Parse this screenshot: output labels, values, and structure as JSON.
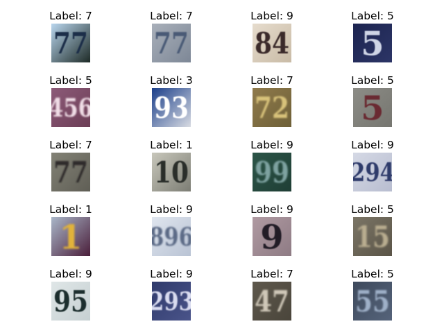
{
  "grid": {
    "rows": 5,
    "cols": 4,
    "label_prefix": "Label: "
  },
  "samples": [
    {
      "label": "7",
      "icon": "digit-photo",
      "glyph": "77",
      "fg": "#1f2d48",
      "bg": "#b9d6ee",
      "bg2": "#1d2a26",
      "blur": 0.5
    },
    {
      "label": "7",
      "icon": "digit-photo",
      "glyph": "77",
      "fg": "#4a5a76",
      "bg": "#a9b0ba",
      "bg2": "#7d8796",
      "blur": 0.9
    },
    {
      "label": "9",
      "icon": "digit-photo",
      "glyph": "84",
      "fg": "#3a2a2a",
      "bg": "#e6dccd",
      "bg2": "#c9bba6",
      "blur": 0.5
    },
    {
      "label": "5",
      "icon": "digit-photo",
      "glyph": "5",
      "fg": "#cfd5e6",
      "bg": "#1c2450",
      "bg2": "#2c3566",
      "blur": 0.6
    },
    {
      "label": "5",
      "icon": "digit-photo",
      "glyph": "456",
      "fg": "#f0dde6",
      "bg": "#8c5a78",
      "bg2": "#6c3e56",
      "blur": 1.0
    },
    {
      "label": "3",
      "icon": "digit-photo",
      "glyph": "93",
      "fg": "#ffffff",
      "bg": "#1b3f8a",
      "bg2": "#d8dbe2",
      "blur": 0.4
    },
    {
      "label": "7",
      "icon": "digit-photo",
      "glyph": "72",
      "fg": "#d8c27a",
      "bg": "#8f7a4b",
      "bg2": "#6e6038",
      "blur": 1.1
    },
    {
      "label": "5",
      "icon": "digit-photo",
      "glyph": "5",
      "fg": "#6a2a30",
      "bg": "#8c8c86",
      "bg2": "#767670",
      "blur": 0.6
    },
    {
      "label": "7",
      "icon": "digit-photo",
      "glyph": "77",
      "fg": "#2d2c2a",
      "bg": "#838276",
      "bg2": "#5f5e55",
      "blur": 1.0
    },
    {
      "label": "1",
      "icon": "digit-photo",
      "glyph": "10",
      "fg": "#2b2e2c",
      "bg": "#c8c7bb",
      "bg2": "#7c7d74",
      "blur": 0.6
    },
    {
      "label": "9",
      "icon": "digit-photo",
      "glyph": "99",
      "fg": "#7ea2a0",
      "bg": "#2c5548",
      "bg2": "#1f3e35",
      "blur": 1.0
    },
    {
      "label": "9",
      "icon": "digit-photo",
      "glyph": "294",
      "fg": "#2e3a6a",
      "bg": "#d5d9e5",
      "bg2": "#b8bdd0",
      "blur": 0.5
    },
    {
      "label": "1",
      "icon": "digit-photo",
      "glyph": "1",
      "fg": "#e1b23a",
      "bg": "#a9b6c8",
      "bg2": "#4a1e3a",
      "blur": 1.4
    },
    {
      "label": "9",
      "icon": "digit-photo",
      "glyph": "896",
      "fg": "#5c6a86",
      "bg": "#dfe5ee",
      "bg2": "#b9c3d4",
      "blur": 1.1
    },
    {
      "label": "9",
      "icon": "digit-photo",
      "glyph": "9",
      "fg": "#201b26",
      "bg": "#b09aa2",
      "bg2": "#8e7b84",
      "blur": 0.5
    },
    {
      "label": "5",
      "icon": "digit-photo",
      "glyph": "15",
      "fg": "#b9ad90",
      "bg": "#7b7566",
      "bg2": "#5a5447",
      "blur": 1.2
    },
    {
      "label": "9",
      "icon": "digit-photo",
      "glyph": "95",
      "fg": "#1f2f2d",
      "bg": "#dfe6e7",
      "bg2": "#c6d0d2",
      "blur": 0.4
    },
    {
      "label": "9",
      "icon": "digit-photo",
      "glyph": "293",
      "fg": "#d9dcf0",
      "bg": "#2f3a6b",
      "bg2": "#4a548a",
      "blur": 0.7
    },
    {
      "label": "7",
      "icon": "digit-photo",
      "glyph": "47",
      "fg": "#cfc7b8",
      "bg": "#5e584c",
      "bg2": "#4a453b",
      "blur": 1.0
    },
    {
      "label": "5",
      "icon": "digit-photo",
      "glyph": "55",
      "fg": "#9fb0c8",
      "bg": "#3e4a5c",
      "bg2": "#55637a",
      "blur": 1.1
    }
  ]
}
